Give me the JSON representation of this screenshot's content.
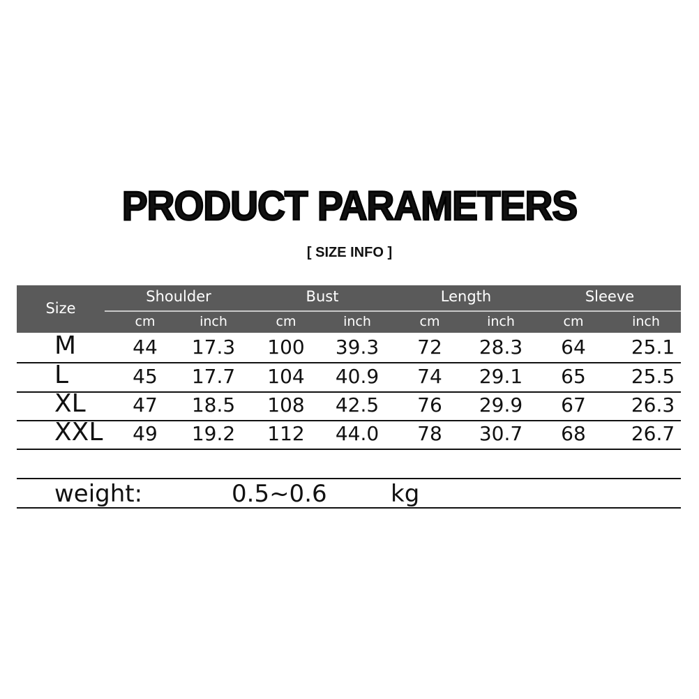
{
  "title": "PRODUCT PARAMETERS",
  "subtitle": "[ SIZE  INFO ]",
  "table": {
    "size_header": "Size",
    "groups": [
      "Shoulder",
      "Bust",
      "Length",
      "Sleeve"
    ],
    "units": [
      "cm",
      "inch",
      "cm",
      "inch",
      "cm",
      "inch",
      "cm",
      "inch"
    ],
    "rows": [
      {
        "size": "M",
        "values": [
          "44",
          "17.3",
          "100",
          "39.3",
          "72",
          "28.3",
          "64",
          "25.1"
        ]
      },
      {
        "size": "L",
        "values": [
          "45",
          "17.7",
          "104",
          "40.9",
          "74",
          "29.1",
          "65",
          "25.5"
        ]
      },
      {
        "size": "XL",
        "values": [
          "47",
          "18.5",
          "108",
          "42.5",
          "76",
          "29.9",
          "67",
          "26.3"
        ]
      },
      {
        "size": "XXL",
        "values": [
          "49",
          "19.2",
          "112",
          "44.0",
          "78",
          "30.7",
          "68",
          "26.7"
        ]
      }
    ]
  },
  "weight": {
    "label": "weight:",
    "value": "0.5~0.6",
    "unit": "kg"
  },
  "colors": {
    "header_bg": "#5a5a5a",
    "header_text": "#ffffff"
  }
}
